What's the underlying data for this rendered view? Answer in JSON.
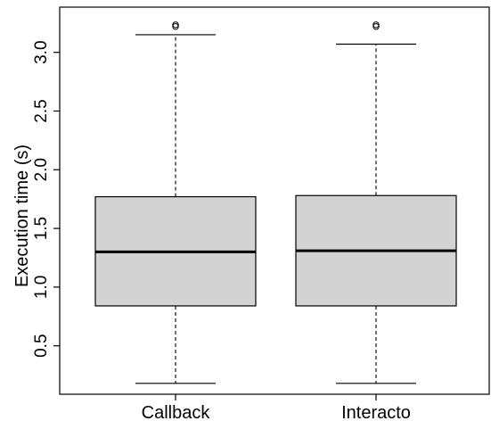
{
  "chart_data": {
    "type": "boxplot",
    "title": "",
    "xlabel": "",
    "ylabel": "Execution time (s)",
    "ylim": [
      0.0,
      3.3
    ],
    "yticks": [
      "0.5",
      "1.0",
      "1.5",
      "2.0",
      "2.5",
      "3.0"
    ],
    "categories": [
      "Callback",
      "Interacto"
    ],
    "boxes": [
      {
        "name": "Callback",
        "whisker_low": 0.18,
        "q1": 0.84,
        "median": 1.3,
        "q3": 1.77,
        "whisker_high": 3.15,
        "outliers": [
          3.22,
          3.235
        ]
      },
      {
        "name": "Interacto",
        "whisker_low": 0.18,
        "q1": 0.84,
        "median": 1.31,
        "q3": 1.78,
        "whisker_high": 3.07,
        "outliers": [
          3.22,
          3.235
        ]
      }
    ],
    "box_color": "#d3d3d3",
    "line_color": "#000000",
    "grid": false,
    "legend": "none"
  }
}
